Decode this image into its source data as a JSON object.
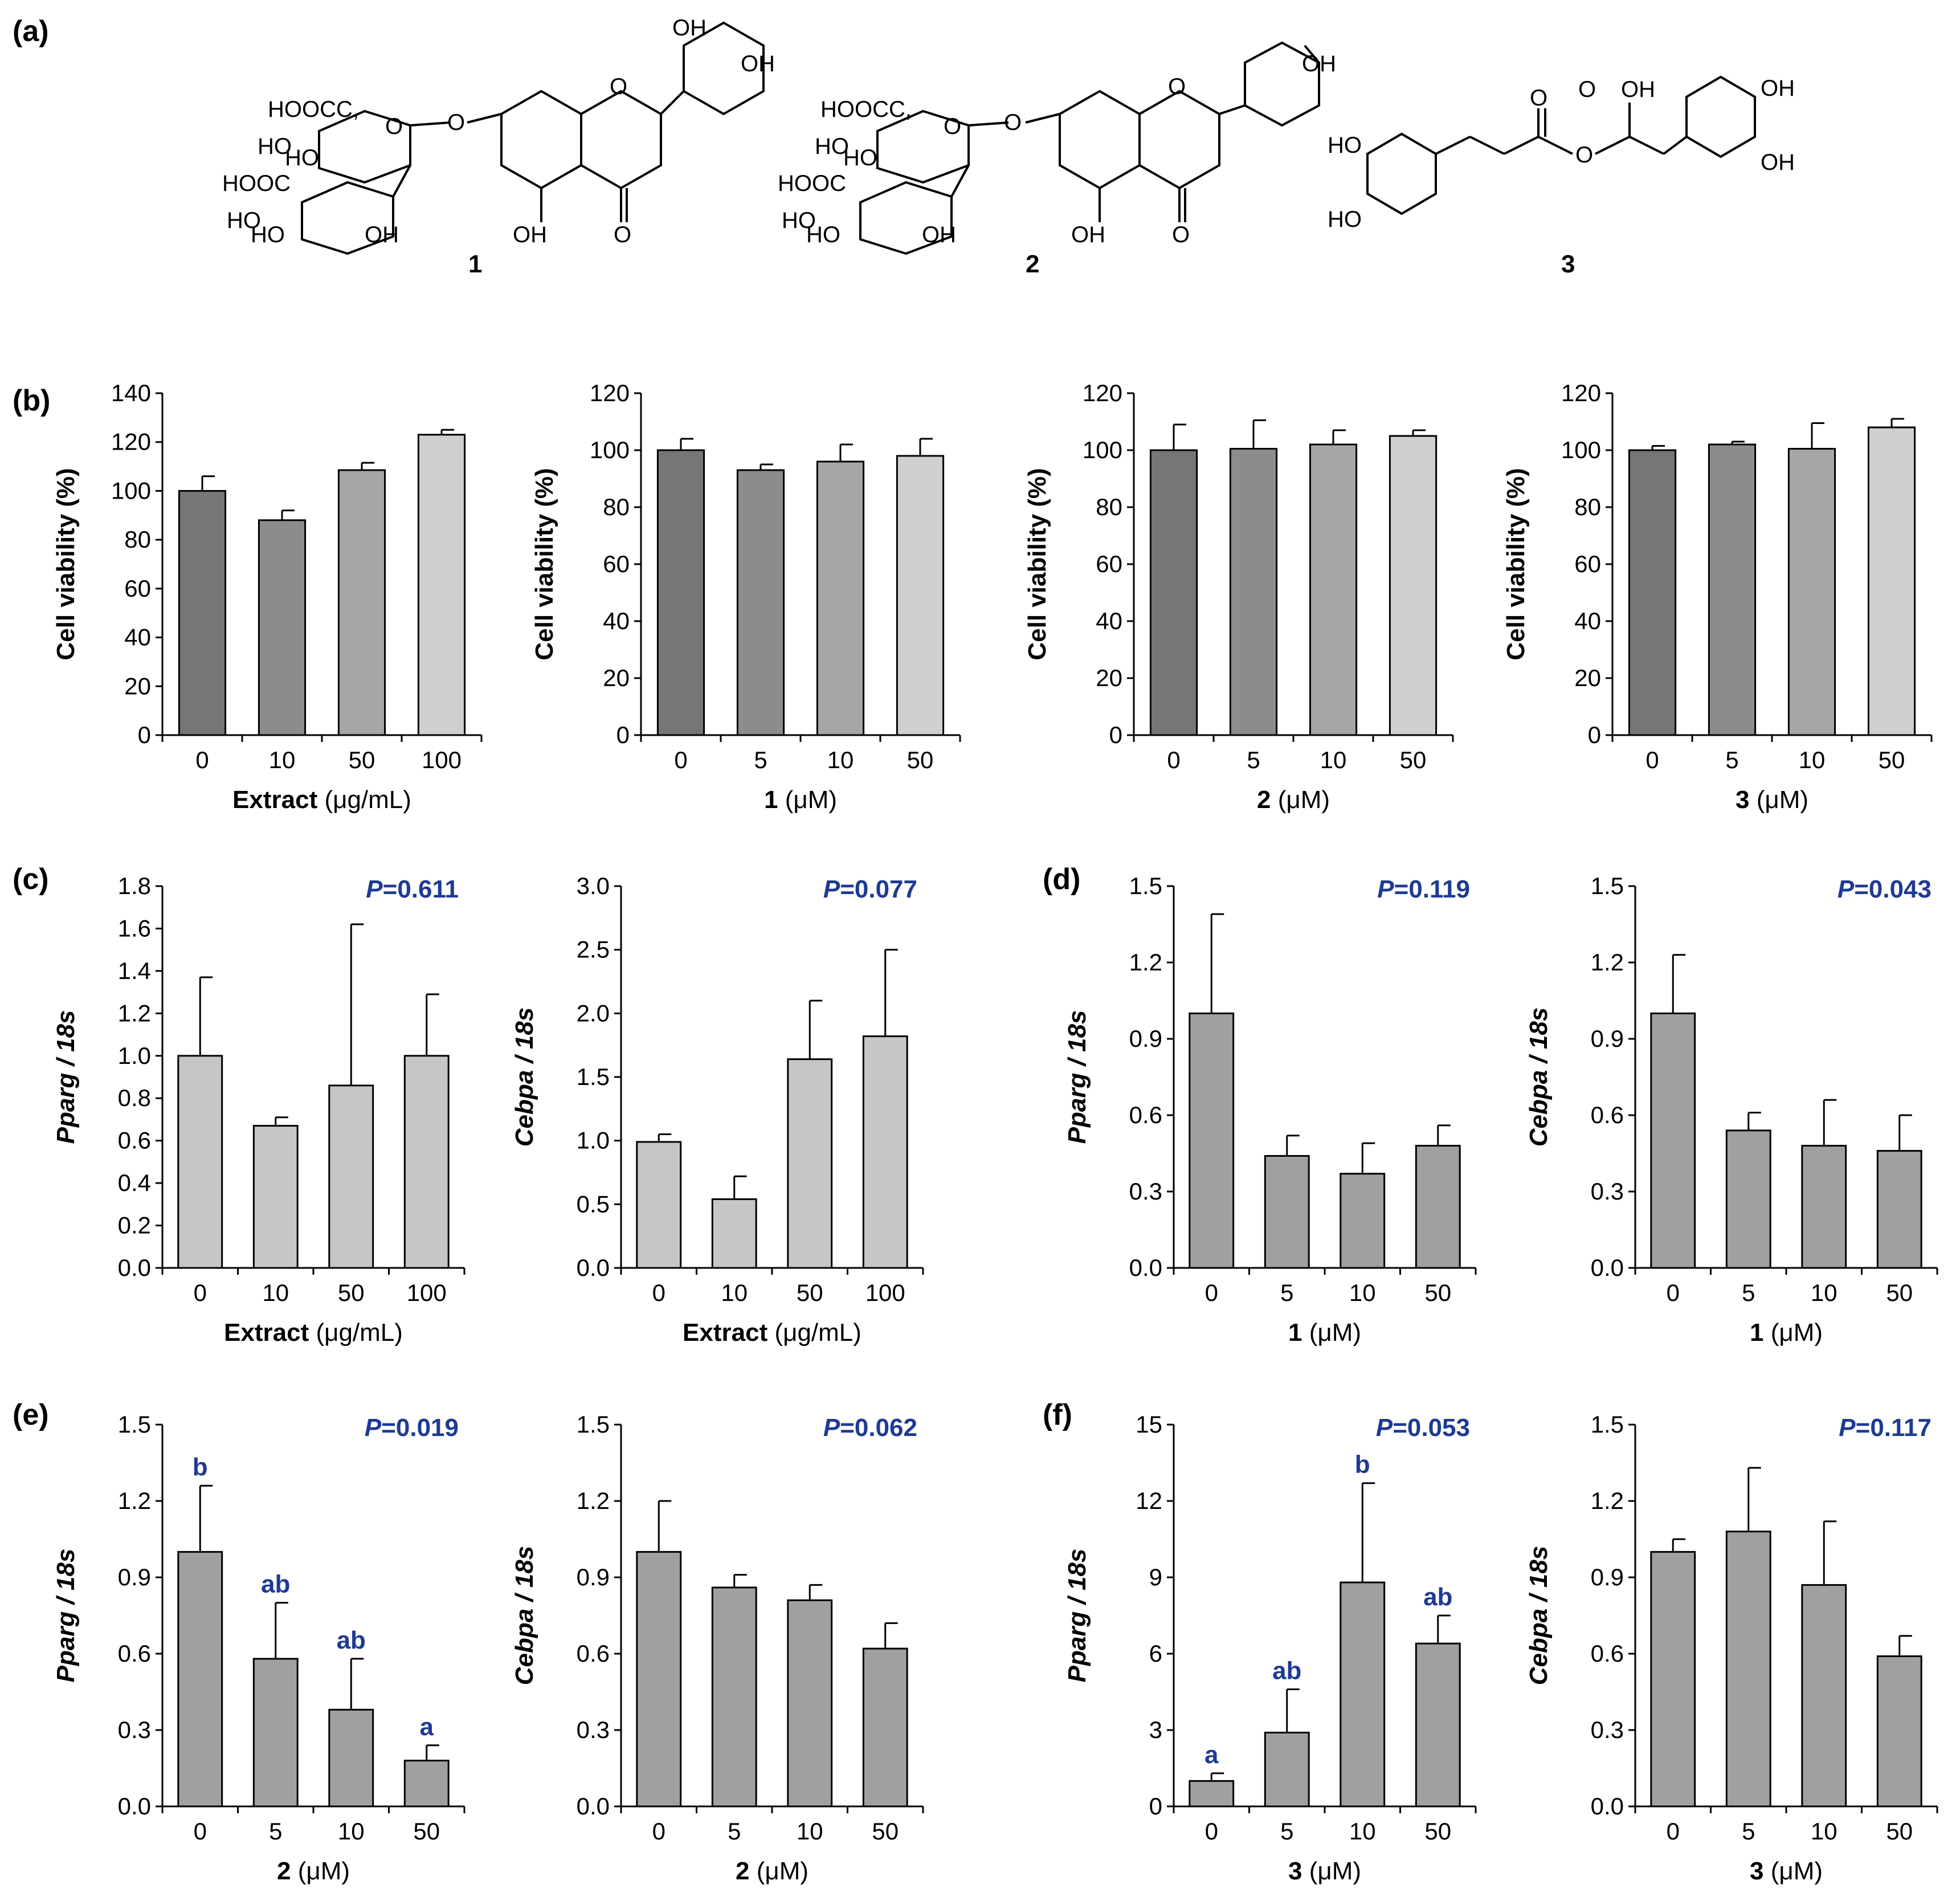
{
  "panel_labels": {
    "a": "(a)",
    "b": "(b)",
    "c": "(c)",
    "d": "(d)",
    "e": "(e)",
    "f": "(f)"
  },
  "structures": {
    "compound_numbers": [
      "1",
      "2",
      "3"
    ],
    "labels": {
      "hooc": "HOOC",
      "ho": "HO",
      "oh": "OH",
      "o": "O"
    }
  },
  "colors": {
    "bar_dark": "#767676",
    "bar_mid": "#8c8c8c",
    "bar_mid2": "#a6a6a6",
    "bar_light": "#cfcfcf",
    "bar_c": "#c6c6c6",
    "bar_gray": "#a0a0a0",
    "annotation_blue": "#1f3a93"
  },
  "chart_data": [
    {
      "id": "b1",
      "panel": "b",
      "type": "bar",
      "categories": [
        "0",
        "10",
        "50",
        "100"
      ],
      "values": [
        100,
        88,
        108.5,
        123
      ],
      "errors": [
        6,
        4,
        3,
        2
      ],
      "ylabel": "Cell viability (%)",
      "ylim": [
        0,
        140
      ],
      "yticks": [
        "0",
        "20",
        "40",
        "60",
        "80",
        "100",
        "120",
        "140"
      ],
      "xlabel_bold": "Extract",
      "xlabel_rest": " (μg/mL)",
      "pvalue": "",
      "letters": []
    },
    {
      "id": "b2",
      "panel": "b",
      "type": "bar",
      "categories": [
        "0",
        "5",
        "10",
        "50"
      ],
      "values": [
        100,
        93,
        96,
        98
      ],
      "errors": [
        4,
        2,
        6,
        6
      ],
      "ylabel": "Cell viability (%)",
      "ylim": [
        0,
        120
      ],
      "yticks": [
        "0",
        "20",
        "40",
        "60",
        "80",
        "100",
        "120"
      ],
      "xlabel_bold": "1",
      "xlabel_rest": " (μM)",
      "pvalue": "",
      "letters": []
    },
    {
      "id": "b3",
      "panel": "b",
      "type": "bar",
      "categories": [
        "0",
        "5",
        "10",
        "50"
      ],
      "values": [
        100,
        100.5,
        102,
        105
      ],
      "errors": [
        9,
        10,
        5,
        2
      ],
      "ylabel": "Cell viability (%)",
      "ylim": [
        0,
        120
      ],
      "yticks": [
        "0",
        "20",
        "40",
        "60",
        "80",
        "100",
        "120"
      ],
      "xlabel_bold": "2",
      "xlabel_rest": " (μM)",
      "pvalue": "",
      "letters": []
    },
    {
      "id": "b4",
      "panel": "b",
      "type": "bar",
      "categories": [
        "0",
        "5",
        "10",
        "50"
      ],
      "values": [
        100,
        102,
        100.5,
        108
      ],
      "errors": [
        1.5,
        1,
        9,
        3
      ],
      "ylabel": "Cell viability (%)",
      "ylim": [
        0,
        120
      ],
      "yticks": [
        "0",
        "20",
        "40",
        "60",
        "80",
        "100",
        "120"
      ],
      "xlabel_bold": "3",
      "xlabel_rest": " (μM)",
      "pvalue": "",
      "letters": []
    },
    {
      "id": "c1",
      "panel": "c",
      "type": "bar",
      "categories": [
        "0",
        "10",
        "50",
        "100"
      ],
      "values": [
        1.0,
        0.67,
        0.86,
        1.0
      ],
      "errors": [
        0.37,
        0.04,
        0.76,
        0.29
      ],
      "ylabel_italic": "Pparg / 18s",
      "ylim": [
        0,
        1.8
      ],
      "yticks": [
        "0.0",
        "0.2",
        "0.4",
        "0.6",
        "0.8",
        "1.0",
        "1.2",
        "1.4",
        "1.6",
        "1.8"
      ],
      "xlabel_bold": "Extract",
      "xlabel_rest": " (μg/mL)",
      "pvalue": "=0.611",
      "letters": []
    },
    {
      "id": "c2",
      "panel": "c",
      "type": "bar",
      "categories": [
        "0",
        "10",
        "50",
        "100"
      ],
      "values": [
        0.99,
        0.54,
        1.64,
        1.82
      ],
      "errors": [
        0.06,
        0.18,
        0.46,
        0.68
      ],
      "ylabel_italic": "Cebpa / 18s",
      "ylim": [
        0,
        3.0
      ],
      "yticks": [
        "0.0",
        "0.5",
        "1.0",
        "1.5",
        "2.0",
        "2.5",
        "3.0"
      ],
      "xlabel_bold": "Extract",
      "xlabel_rest": " (μg/mL)",
      "pvalue": "=0.077",
      "letters": []
    },
    {
      "id": "d1",
      "panel": "d",
      "type": "bar",
      "categories": [
        "0",
        "5",
        "10",
        "50"
      ],
      "values": [
        1.0,
        0.44,
        0.37,
        0.48
      ],
      "errors": [
        0.39,
        0.08,
        0.12,
        0.08
      ],
      "ylabel_italic": "Pparg / 18s",
      "ylim": [
        0,
        1.5
      ],
      "yticks": [
        "0.0",
        "0.3",
        "0.6",
        "0.9",
        "1.2",
        "1.5"
      ],
      "xlabel_bold": "1",
      "xlabel_rest": " (μM)",
      "pvalue": "=0.119",
      "letters": []
    },
    {
      "id": "d2",
      "panel": "d",
      "type": "bar",
      "categories": [
        "0",
        "5",
        "10",
        "50"
      ],
      "values": [
        1.0,
        0.54,
        0.48,
        0.46
      ],
      "errors": [
        0.23,
        0.07,
        0.18,
        0.14
      ],
      "ylabel_italic": "Cebpa / 18s",
      "ylim": [
        0,
        1.5
      ],
      "yticks": [
        "0.0",
        "0.3",
        "0.6",
        "0.9",
        "1.2",
        "1.5"
      ],
      "xlabel_bold": "1",
      "xlabel_rest": " (μM)",
      "pvalue": "=0.043",
      "letters": []
    },
    {
      "id": "e1",
      "panel": "e",
      "type": "bar",
      "categories": [
        "0",
        "5",
        "10",
        "50"
      ],
      "values": [
        1.0,
        0.58,
        0.38,
        0.18
      ],
      "errors": [
        0.26,
        0.22,
        0.2,
        0.06
      ],
      "ylabel_italic": "Pparg / 18s",
      "ylim": [
        0,
        1.5
      ],
      "yticks": [
        "0.0",
        "0.3",
        "0.6",
        "0.9",
        "1.2",
        "1.5"
      ],
      "xlabel_bold": "2",
      "xlabel_rest": " (μM)",
      "pvalue": "=0.019",
      "letters": [
        "b",
        "ab",
        "ab",
        "a"
      ]
    },
    {
      "id": "e2",
      "panel": "e",
      "type": "bar",
      "categories": [
        "0",
        "5",
        "10",
        "50"
      ],
      "values": [
        1.0,
        0.86,
        0.81,
        0.62
      ],
      "errors": [
        0.2,
        0.05,
        0.06,
        0.1
      ],
      "ylabel_italic": "Cebpa / 18s",
      "ylim": [
        0,
        1.5
      ],
      "yticks": [
        "0.0",
        "0.3",
        "0.6",
        "0.9",
        "1.2",
        "1.5"
      ],
      "xlabel_bold": "2",
      "xlabel_rest": " (μM)",
      "pvalue": "=0.062",
      "letters": []
    },
    {
      "id": "f1",
      "panel": "f",
      "type": "bar",
      "categories": [
        "0",
        "5",
        "10",
        "50"
      ],
      "values": [
        1.0,
        2.9,
        8.8,
        6.4
      ],
      "errors": [
        0.3,
        1.7,
        3.9,
        1.1
      ],
      "ylabel_italic": "Pparg / 18s",
      "ylim": [
        0,
        15
      ],
      "yticks": [
        "0",
        "3",
        "6",
        "9",
        "12",
        "15"
      ],
      "xlabel_bold": "3",
      "xlabel_rest": " (μM)",
      "pvalue": "=0.053",
      "letters": [
        "a",
        "ab",
        "b",
        "ab"
      ]
    },
    {
      "id": "f2",
      "panel": "f",
      "type": "bar",
      "categories": [
        "0",
        "5",
        "10",
        "50"
      ],
      "values": [
        1.0,
        1.08,
        0.87,
        0.59
      ],
      "errors": [
        0.05,
        0.25,
        0.25,
        0.08
      ],
      "ylabel_italic": "Cebpa / 18s",
      "ylim": [
        0,
        1.5
      ],
      "yticks": [
        "0.0",
        "0.3",
        "0.6",
        "0.9",
        "1.2",
        "1.5"
      ],
      "xlabel_bold": "3",
      "xlabel_rest": " (μM)",
      "pvalue": "=0.117",
      "letters": []
    }
  ]
}
